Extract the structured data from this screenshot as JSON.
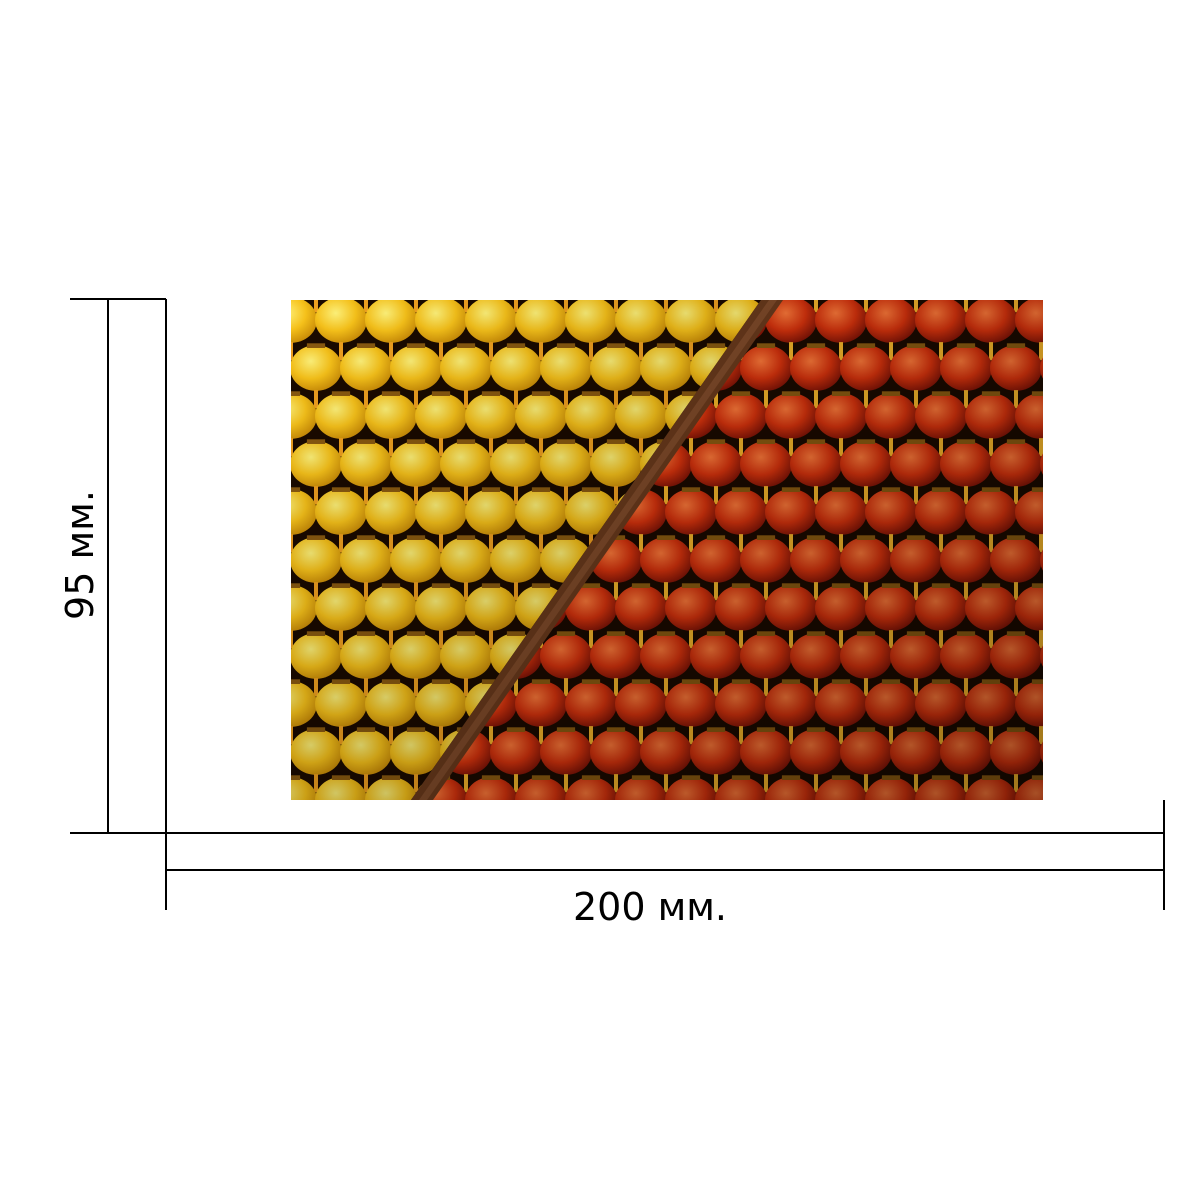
{
  "dimensions": {
    "width_label": "200 мм.",
    "height_label": "95 мм."
  },
  "photo": {
    "subject": "lanterns",
    "colors": {
      "yellow": "#f7c21a",
      "orange_red": "#e64a10",
      "deep_red": "#b51f0c",
      "beam": "#6a3a1c",
      "background": "#1a0a00"
    }
  }
}
